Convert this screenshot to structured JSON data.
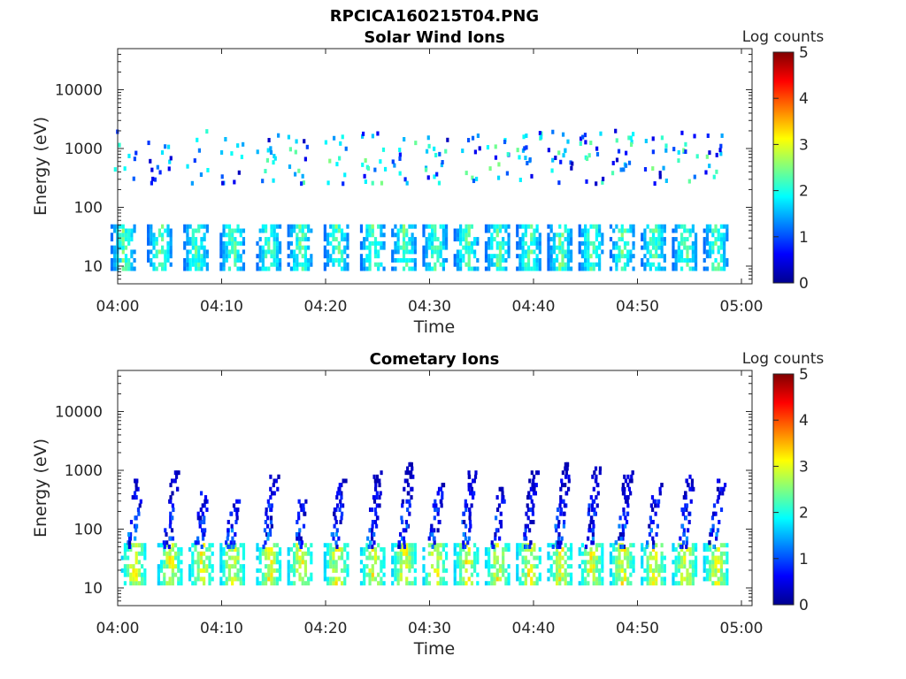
{
  "figure_title": "RPCICA160215T04.PNG",
  "colorbar": {
    "label": "Log counts",
    "min": 0,
    "max": 5,
    "ticks": [
      "0",
      "1",
      "2",
      "3",
      "4",
      "5"
    ]
  },
  "chart_data": [
    {
      "type": "heatmap",
      "title": "Solar Wind Ions",
      "xlabel": "Time",
      "ylabel": "Energy (eV)",
      "xlim": [
        "04:00",
        "05:00"
      ],
      "xticks": [
        "04:00",
        "04:10",
        "04:20",
        "04:30",
        "04:40",
        "04:50",
        "05:00"
      ],
      "ylim": [
        5,
        50000
      ],
      "yscale": "log",
      "yticks": [
        "10",
        "100",
        "1000",
        "10000"
      ],
      "colorscale": "jet",
      "note_pattern": "periodic bursts ~every 3 min; main band 15-40 eV at 1-2.5 log counts; sparse upper band 300-2000 eV",
      "bursts_minutes": [
        0.5,
        4,
        7.5,
        11,
        14.5,
        17.5,
        21,
        24.5,
        27.5,
        30.5,
        33.5,
        36.5,
        39.5,
        42.5,
        45.5,
        48.5,
        51.5,
        54.5,
        57.5
      ],
      "band_energy_eV": [
        15,
        40
      ],
      "band_log_counts": [
        1.0,
        2.5
      ]
    },
    {
      "type": "heatmap",
      "title": "Cometary Ions",
      "xlabel": "Time",
      "ylabel": "Energy (eV)",
      "xlim": [
        "04:00",
        "05:00"
      ],
      "xticks": [
        "04:00",
        "04:10",
        "04:20",
        "04:30",
        "04:40",
        "04:50",
        "05:00"
      ],
      "ylim": [
        5,
        50000
      ],
      "yscale": "log",
      "yticks": [
        "10",
        "100",
        "1000",
        "10000"
      ],
      "colorscale": "jet",
      "note_pattern": "periodic bursts ~every 3 min; dense band 20-45 eV peaking ~3 log counts; tails rising to ~1000 eV",
      "bursts_minutes": [
        1.5,
        5,
        8,
        11,
        14.5,
        17.5,
        21,
        24.5,
        27.5,
        30.5,
        33.5,
        36.5,
        39.5,
        42.5,
        45.5,
        48.5,
        51.5,
        54.5,
        57.5
      ],
      "band_energy_eV": [
        20,
        45
      ],
      "band_log_counts": [
        1.5,
        3.2
      ]
    }
  ]
}
